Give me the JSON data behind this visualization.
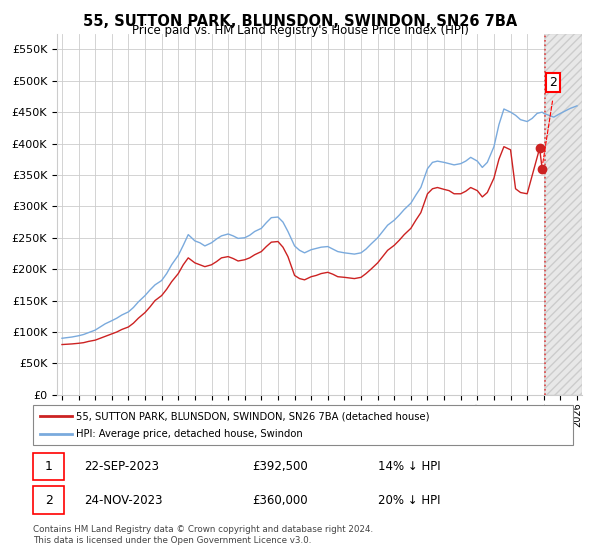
{
  "title": "55, SUTTON PARK, BLUNSDON, SWINDON, SN26 7BA",
  "subtitle": "Price paid vs. HM Land Registry's House Price Index (HPI)",
  "legend_line1": "55, SUTTON PARK, BLUNSDON, SWINDON, SN26 7BA (detached house)",
  "legend_line2": "HPI: Average price, detached house, Swindon",
  "sale1_date": "22-SEP-2023",
  "sale1_price": "£392,500",
  "sale1_hpi": "14% ↓ HPI",
  "sale2_date": "24-NOV-2023",
  "sale2_price": "£360,000",
  "sale2_hpi": "20% ↓ HPI",
  "footer": "Contains HM Land Registry data © Crown copyright and database right 2024.\nThis data is licensed under the Open Government Licence v3.0.",
  "hpi_color": "#7aaadd",
  "price_color": "#cc2222",
  "ylim": [
    0,
    575000
  ],
  "yticks": [
    0,
    50000,
    100000,
    150000,
    200000,
    250000,
    300000,
    350000,
    400000,
    450000,
    500000,
    550000
  ],
  "xlim_min": 1994.7,
  "xlim_max": 2026.3,
  "future_start": 2024.1,
  "background_color": "#ffffff",
  "grid_color": "#cccccc",
  "hpi_years": [
    1995.0,
    1995.3,
    1995.6,
    1996.0,
    1996.3,
    1996.6,
    1997.0,
    1997.3,
    1997.6,
    1998.0,
    1998.3,
    1998.6,
    1999.0,
    1999.3,
    1999.6,
    2000.0,
    2000.3,
    2000.6,
    2001.0,
    2001.3,
    2001.6,
    2002.0,
    2002.3,
    2002.6,
    2003.0,
    2003.3,
    2003.6,
    2004.0,
    2004.3,
    2004.6,
    2005.0,
    2005.3,
    2005.6,
    2006.0,
    2006.3,
    2006.6,
    2007.0,
    2007.3,
    2007.6,
    2008.0,
    2008.3,
    2008.6,
    2009.0,
    2009.3,
    2009.6,
    2010.0,
    2010.3,
    2010.6,
    2011.0,
    2011.3,
    2011.6,
    2012.0,
    2012.3,
    2012.6,
    2013.0,
    2013.3,
    2013.6,
    2014.0,
    2014.3,
    2014.6,
    2015.0,
    2015.3,
    2015.6,
    2016.0,
    2016.3,
    2016.6,
    2017.0,
    2017.3,
    2017.6,
    2018.0,
    2018.3,
    2018.6,
    2019.0,
    2019.3,
    2019.6,
    2020.0,
    2020.3,
    2020.6,
    2021.0,
    2021.3,
    2021.6,
    2022.0,
    2022.3,
    2022.6,
    2023.0,
    2023.3,
    2023.6,
    2023.9,
    2024.0,
    2024.3,
    2024.6,
    2025.0,
    2025.3,
    2025.6,
    2026.0
  ],
  "hpi_values": [
    90000,
    91000,
    92000,
    94000,
    96000,
    99000,
    103000,
    108000,
    113000,
    118000,
    122000,
    127000,
    132000,
    139000,
    148000,
    158000,
    167000,
    175000,
    182000,
    193000,
    207000,
    222000,
    238000,
    255000,
    245000,
    242000,
    237000,
    242000,
    248000,
    253000,
    256000,
    253000,
    249000,
    250000,
    254000,
    260000,
    265000,
    274000,
    282000,
    283000,
    275000,
    260000,
    237000,
    230000,
    226000,
    231000,
    233000,
    235000,
    236000,
    232000,
    228000,
    226000,
    225000,
    224000,
    226000,
    232000,
    240000,
    250000,
    260000,
    270000,
    278000,
    286000,
    295000,
    305000,
    318000,
    330000,
    360000,
    370000,
    372000,
    370000,
    368000,
    366000,
    368000,
    372000,
    378000,
    372000,
    362000,
    370000,
    395000,
    430000,
    455000,
    450000,
    445000,
    438000,
    435000,
    440000,
    448000,
    450000,
    448000,
    445000,
    442000,
    448000,
    452000,
    456000,
    460000
  ],
  "price_years": [
    1995.0,
    1995.3,
    1995.6,
    1996.0,
    1996.3,
    1996.6,
    1997.0,
    1997.3,
    1997.6,
    1998.0,
    1998.3,
    1998.6,
    1999.0,
    1999.3,
    1999.6,
    2000.0,
    2000.3,
    2000.6,
    2001.0,
    2001.3,
    2001.6,
    2002.0,
    2002.3,
    2002.6,
    2003.0,
    2003.3,
    2003.6,
    2004.0,
    2004.3,
    2004.6,
    2005.0,
    2005.3,
    2005.6,
    2006.0,
    2006.3,
    2006.6,
    2007.0,
    2007.3,
    2007.6,
    2008.0,
    2008.3,
    2008.6,
    2009.0,
    2009.3,
    2009.6,
    2010.0,
    2010.3,
    2010.6,
    2011.0,
    2011.3,
    2011.6,
    2012.0,
    2012.3,
    2012.6,
    2013.0,
    2013.3,
    2013.6,
    2014.0,
    2014.3,
    2014.6,
    2015.0,
    2015.3,
    2015.6,
    2016.0,
    2016.3,
    2016.6,
    2017.0,
    2017.3,
    2017.6,
    2018.0,
    2018.3,
    2018.6,
    2019.0,
    2019.3,
    2019.6,
    2020.0,
    2020.3,
    2020.6,
    2021.0,
    2021.3,
    2021.6,
    2022.0,
    2022.3,
    2022.6,
    2023.0,
    2023.75,
    2023.9
  ],
  "price_values": [
    80000,
    80500,
    81000,
    82000,
    83000,
    85000,
    87000,
    90000,
    93000,
    97000,
    100000,
    104000,
    108000,
    114000,
    122000,
    131000,
    140000,
    150000,
    158000,
    168000,
    180000,
    193000,
    207000,
    218000,
    210000,
    207000,
    204000,
    207000,
    212000,
    218000,
    220000,
    217000,
    213000,
    215000,
    218000,
    223000,
    228000,
    236000,
    243000,
    244000,
    235000,
    220000,
    190000,
    185000,
    183000,
    188000,
    190000,
    193000,
    195000,
    192000,
    188000,
    187000,
    186000,
    185000,
    187000,
    193000,
    200000,
    210000,
    220000,
    230000,
    238000,
    246000,
    255000,
    265000,
    278000,
    290000,
    320000,
    328000,
    330000,
    327000,
    325000,
    320000,
    320000,
    324000,
    330000,
    325000,
    315000,
    322000,
    345000,
    375000,
    395000,
    390000,
    328000,
    322000,
    320000,
    392500,
    360000
  ]
}
